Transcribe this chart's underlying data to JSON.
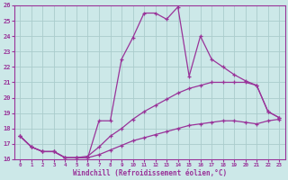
{
  "xlabel": "Windchill (Refroidissement éolien,°C)",
  "background_color": "#cce8e8",
  "grid_color": "#aacccc",
  "line_color": "#993399",
  "xlim": [
    -0.5,
    23.5
  ],
  "ylim": [
    16,
    26
  ],
  "xticks": [
    0,
    1,
    2,
    3,
    4,
    5,
    6,
    7,
    8,
    9,
    10,
    11,
    12,
    13,
    14,
    15,
    16,
    17,
    18,
    19,
    20,
    21,
    22,
    23
  ],
  "yticks": [
    16,
    17,
    18,
    19,
    20,
    21,
    22,
    23,
    24,
    25,
    26
  ],
  "line1_x": [
    0,
    1,
    2,
    3,
    4,
    5,
    6,
    7,
    8,
    9,
    10,
    11,
    12,
    13,
    14,
    15,
    16,
    17,
    18,
    19,
    20,
    21,
    22,
    23
  ],
  "line1_y": [
    17.5,
    16.8,
    16.5,
    16.5,
    16.1,
    16.1,
    16.1,
    18.5,
    18.5,
    22.5,
    23.9,
    25.5,
    25.5,
    25.1,
    25.9,
    21.4,
    24.0,
    22.5,
    22.0,
    21.5,
    21.1,
    20.8,
    19.1,
    18.7
  ],
  "line2_x": [
    0,
    1,
    2,
    3,
    4,
    5,
    6,
    7,
    8,
    9,
    10,
    11,
    12,
    13,
    14,
    15,
    16,
    17,
    18,
    19,
    20,
    21,
    22,
    23
  ],
  "line2_y": [
    17.5,
    16.8,
    16.5,
    16.5,
    16.1,
    16.1,
    16.2,
    16.8,
    17.5,
    18.0,
    18.6,
    19.1,
    19.5,
    19.9,
    20.3,
    20.6,
    20.8,
    21.0,
    21.0,
    21.0,
    21.0,
    20.8,
    19.1,
    18.7
  ],
  "line3_x": [
    0,
    1,
    2,
    3,
    4,
    5,
    6,
    7,
    8,
    9,
    10,
    11,
    12,
    13,
    14,
    15,
    16,
    17,
    18,
    19,
    20,
    21,
    22,
    23
  ],
  "line3_y": [
    17.5,
    16.8,
    16.5,
    16.5,
    16.1,
    16.1,
    16.1,
    16.3,
    16.6,
    16.9,
    17.2,
    17.4,
    17.6,
    17.8,
    18.0,
    18.2,
    18.3,
    18.4,
    18.5,
    18.5,
    18.4,
    18.3,
    18.5,
    18.6
  ]
}
